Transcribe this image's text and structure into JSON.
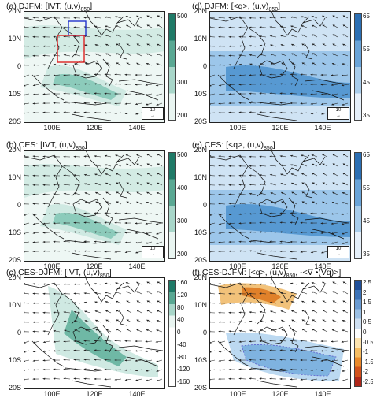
{
  "panels": [
    {
      "key": "a",
      "title": "(a) DJFM: [IVT, (u,v)",
      "sub": "850",
      "title_end": "]",
      "fill": "green",
      "colorbar": [
        "500",
        "400",
        "300",
        "200"
      ],
      "ref": "10"
    },
    {
      "key": "d",
      "title": "(d) DJFM:  [<q>, (u,v)",
      "sub": "850",
      "title_end": "]",
      "fill": "blue",
      "colorbar": [
        "65",
        "55",
        "45",
        "35"
      ],
      "ref": "10"
    },
    {
      "key": "b",
      "title": "(b) CES: [IVT, (u,v)",
      "sub": "850",
      "title_end": "]",
      "fill": "green",
      "colorbar": [
        "500",
        "400",
        "300",
        "200"
      ],
      "ref": "10"
    },
    {
      "key": "e",
      "title": "(e) CES:  [<q>, (u,v)",
      "sub": "850",
      "title_end": "]",
      "fill": "blue",
      "colorbar": [
        "65",
        "55",
        "45",
        "35"
      ],
      "ref": "10"
    },
    {
      "key": "c",
      "title": "(c) CES-DJFM: [IVT, (u,v)",
      "sub": "850",
      "title_end": "]",
      "fill": "diffgreen",
      "colorbar": [
        "160",
        "120",
        "80",
        "40",
        "0",
        "-40",
        "-80",
        "-120",
        "-160"
      ],
      "ref": ""
    },
    {
      "key": "f",
      "title": "(f) CES-DJFM:  [<q>, (u,v)",
      "sub": "850",
      "title_end": ", -<∇ •(Vq)>]",
      "fill": "diffbr",
      "colorbar": [
        "2.5",
        "2",
        "1.5",
        "1",
        "0.5",
        "0",
        "-0.5",
        "-1",
        "-1.5",
        "-2",
        "-2.5"
      ],
      "ref": ""
    }
  ],
  "lat_labels": [
    "20N",
    "10N",
    "0",
    "10S",
    "20S"
  ],
  "lon_labels": [
    "100E",
    "120E",
    "140E"
  ],
  "colors": {
    "green_dark": "#2b8c77",
    "green_light": "#cfe9e2",
    "blue_dark": "#3a86c8",
    "blue_light": "#cfe3f4",
    "orange": "#e0812a",
    "box_blue": "#2233cc",
    "box_red": "#dd2222"
  }
}
